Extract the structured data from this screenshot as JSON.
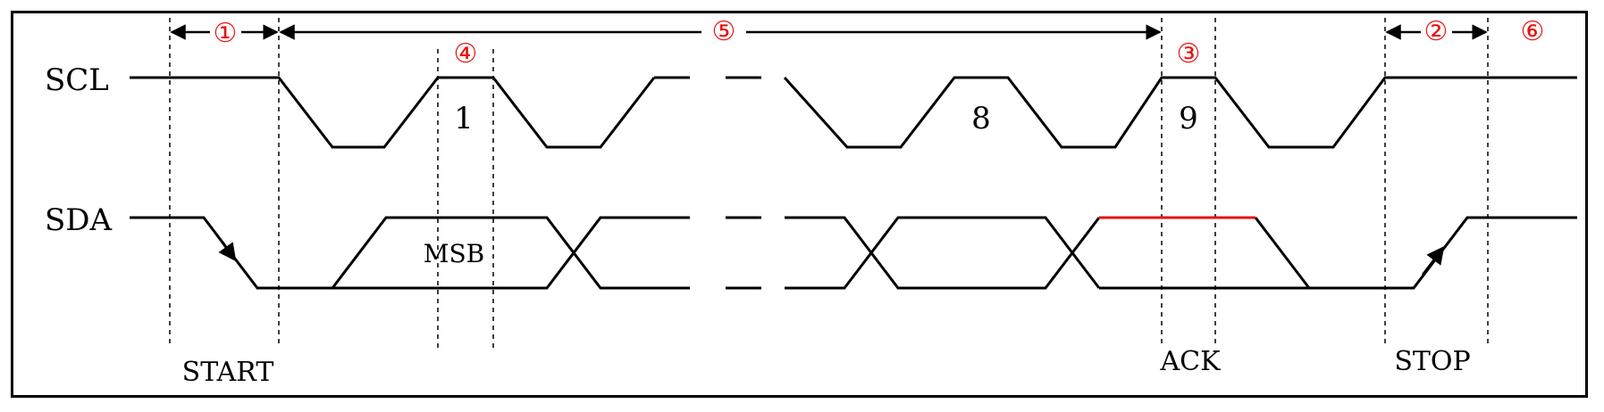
{
  "signals": {
    "scl": "SCL",
    "sda": "SDA"
  },
  "bits": {
    "first": "1",
    "eighth": "8",
    "ninth": "9"
  },
  "bit_label": "MSB",
  "conditions": {
    "start": "START",
    "ack": "ACK",
    "stop": "STOP"
  },
  "annotations": {
    "a1": "①",
    "a2": "②",
    "a3": "③",
    "a4": "④",
    "a5": "⑤",
    "a6": "⑥"
  },
  "colors": {
    "line": "#000000",
    "annotation": "#e81212",
    "ack_high": "#e81212"
  }
}
